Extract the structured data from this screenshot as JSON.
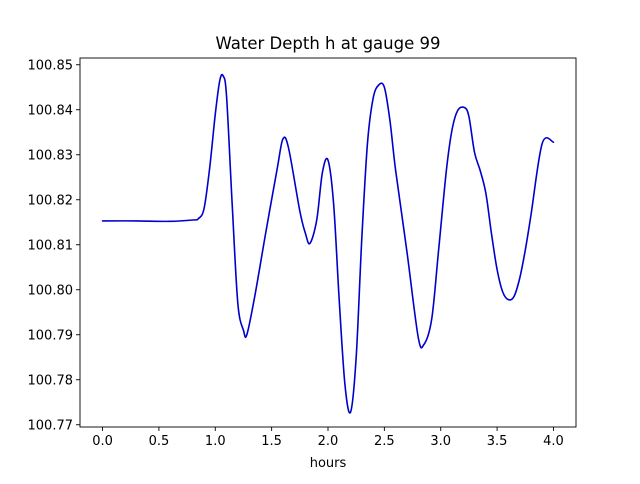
{
  "chart_data": {
    "type": "line",
    "title": "Water Depth h at gauge 99",
    "xlabel": "hours",
    "ylabel": "",
    "xlim": [
      -0.2,
      4.2
    ],
    "ylim": [
      100.7695,
      100.8515
    ],
    "xticks": [
      0.0,
      0.5,
      1.0,
      1.5,
      2.0,
      2.5,
      3.0,
      3.5,
      4.0
    ],
    "xtick_labels": [
      "0.0",
      "0.5",
      "1.0",
      "1.5",
      "2.0",
      "2.5",
      "3.0",
      "3.5",
      "4.0"
    ],
    "yticks": [
      100.77,
      100.78,
      100.79,
      100.8,
      100.81,
      100.82,
      100.83,
      100.84,
      100.85
    ],
    "ytick_labels": [
      "100.77",
      "100.78",
      "100.79",
      "100.80",
      "100.81",
      "100.82",
      "100.83",
      "100.84",
      "100.85"
    ],
    "grid": false,
    "legend": "none",
    "line_color": "#0000cc",
    "series": [
      {
        "x": [
          0.0,
          0.3,
          0.6,
          0.8,
          0.85,
          0.9,
          0.95,
          1.0,
          1.04,
          1.07,
          1.1,
          1.15,
          1.2,
          1.25,
          1.28,
          1.35,
          1.45,
          1.55,
          1.6,
          1.65,
          1.75,
          1.8,
          1.84,
          1.9,
          1.95,
          2.0,
          2.05,
          2.1,
          2.15,
          2.2,
          2.25,
          2.3,
          2.35,
          2.4,
          2.45,
          2.5,
          2.55,
          2.6,
          2.7,
          2.8,
          2.85,
          2.92,
          2.98,
          3.05,
          3.1,
          3.15,
          3.21,
          3.25,
          3.3,
          3.35,
          3.4,
          3.45,
          3.5,
          3.55,
          3.6,
          3.65,
          3.7,
          3.75,
          3.8,
          3.9,
          4.0
        ],
        "y": [
          100.8153,
          100.8153,
          100.8152,
          100.8155,
          100.8158,
          100.818,
          100.827,
          100.839,
          100.8465,
          100.8475,
          100.843,
          100.819,
          100.797,
          100.791,
          100.79,
          100.7985,
          100.813,
          100.827,
          100.8335,
          100.8315,
          100.8175,
          100.8125,
          100.8103,
          100.8155,
          100.826,
          100.8288,
          100.819,
          100.7975,
          100.779,
          100.7728,
          100.785,
          100.8115,
          100.8325,
          100.8425,
          100.8455,
          100.845,
          100.8375,
          100.8265,
          100.8085,
          100.7895,
          100.7878,
          100.7935,
          100.8085,
          100.8265,
          100.8355,
          100.8398,
          100.8405,
          100.8385,
          100.8305,
          100.8265,
          100.8215,
          100.8125,
          100.8045,
          100.7995,
          100.7978,
          100.7985,
          100.8025,
          100.8088,
          100.8165,
          100.8325,
          100.8328
        ]
      }
    ]
  }
}
